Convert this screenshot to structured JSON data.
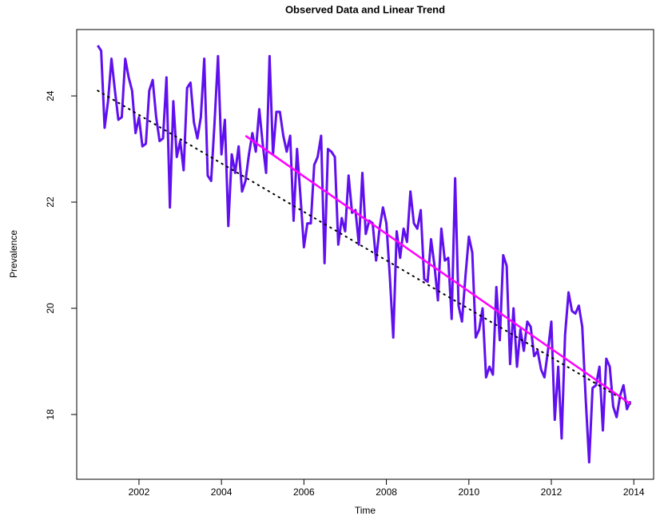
{
  "chart_data": {
    "type": "line",
    "title": "Observed Data and Linear Trend",
    "xlabel": "Time",
    "ylabel": "Prevalence",
    "xlim": [
      2000.49,
      2014.48
    ],
    "ylim": [
      16.78,
      25.25
    ],
    "xticks": [
      2002,
      2004,
      2006,
      2008,
      2010,
      2012,
      2014
    ],
    "yticks": [
      18,
      20,
      22,
      24
    ],
    "series": [
      {
        "color": "#6010ee",
        "style": "solid",
        "x": [
          2001,
          2001.083,
          2001.167,
          2001.25,
          2001.333,
          2001.417,
          2001.5,
          2001.583,
          2001.667,
          2001.75,
          2001.833,
          2001.917,
          2002,
          2002.083,
          2002.167,
          2002.25,
          2002.333,
          2002.417,
          2002.5,
          2002.583,
          2002.667,
          2002.75,
          2002.833,
          2002.917,
          2003,
          2003.083,
          2003.167,
          2003.25,
          2003.333,
          2003.417,
          2003.5,
          2003.583,
          2003.667,
          2003.75,
          2003.833,
          2003.917,
          2004,
          2004.083,
          2004.167,
          2004.25,
          2004.333,
          2004.417,
          2004.5,
          2004.583,
          2004.667,
          2004.75,
          2004.833,
          2004.917,
          2005,
          2005.083,
          2005.167,
          2005.25,
          2005.333,
          2005.417,
          2005.5,
          2005.583,
          2005.667,
          2005.75,
          2005.833,
          2005.917,
          2006,
          2006.083,
          2006.167,
          2006.25,
          2006.333,
          2006.417,
          2006.5,
          2006.583,
          2006.667,
          2006.75,
          2006.833,
          2006.917,
          2007,
          2007.083,
          2007.167,
          2007.25,
          2007.333,
          2007.417,
          2007.5,
          2007.583,
          2007.667,
          2007.75,
          2007.833,
          2007.917,
          2008,
          2008.083,
          2008.167,
          2008.25,
          2008.333,
          2008.417,
          2008.5,
          2008.583,
          2008.667,
          2008.75,
          2008.833,
          2008.917,
          2009,
          2009.083,
          2009.167,
          2009.25,
          2009.333,
          2009.417,
          2009.5,
          2009.583,
          2009.667,
          2009.75,
          2009.833,
          2009.917,
          2010,
          2010.083,
          2010.167,
          2010.25,
          2010.333,
          2010.417,
          2010.5,
          2010.583,
          2010.667,
          2010.75,
          2010.833,
          2010.917,
          2011,
          2011.083,
          2011.167,
          2011.25,
          2011.333,
          2011.417,
          2011.5,
          2011.583,
          2011.667,
          2011.75,
          2011.833,
          2011.917,
          2012,
          2012.083,
          2012.167,
          2012.25,
          2012.333,
          2012.417,
          2012.5,
          2012.583,
          2012.667,
          2012.75,
          2012.833,
          2012.917,
          2013,
          2013.083,
          2013.167,
          2013.25,
          2013.333,
          2013.417,
          2013.5,
          2013.583,
          2013.667,
          2013.75,
          2013.833,
          2013.917
        ],
        "values": [
          24.95,
          24.85,
          23.4,
          23.9,
          24.7,
          24.1,
          23.55,
          23.6,
          24.7,
          24.35,
          24.1,
          23.3,
          23.6,
          23.05,
          23.1,
          24.1,
          24.3,
          23.6,
          23.15,
          23.2,
          24.35,
          21.9,
          23.9,
          22.85,
          23.15,
          22.6,
          24.15,
          24.25,
          23.5,
          23.2,
          23.6,
          24.7,
          22.5,
          22.4,
          23.5,
          24.75,
          22.9,
          23.55,
          21.55,
          22.9,
          22.55,
          23.05,
          22.2,
          22.4,
          22.9,
          23.3,
          22.95,
          23.75,
          23.1,
          22.55,
          24.75,
          22.9,
          23.7,
          23.7,
          23.25,
          22.95,
          23.25,
          21.65,
          23.0,
          22.1,
          21.15,
          21.6,
          21.6,
          22.7,
          22.85,
          23.25,
          20.85,
          23.0,
          22.95,
          22.85,
          21.2,
          21.7,
          21.45,
          22.5,
          21.8,
          21.85,
          21.2,
          22.55,
          21.4,
          21.65,
          21.6,
          20.9,
          21.5,
          21.9,
          21.6,
          20.6,
          19.45,
          21.45,
          20.95,
          21.5,
          21.25,
          22.2,
          21.6,
          21.5,
          21.85,
          20.55,
          20.5,
          21.3,
          20.8,
          20.15,
          21.5,
          20.9,
          20.95,
          19.8,
          22.45,
          20.05,
          19.75,
          20.6,
          21.35,
          21.05,
          19.45,
          19.6,
          20.0,
          18.7,
          18.9,
          18.75,
          20.4,
          19.4,
          21.0,
          20.8,
          18.95,
          20.0,
          18.9,
          19.6,
          19.2,
          19.75,
          19.65,
          19.1,
          19.2,
          18.85,
          18.7,
          19.2,
          19.75,
          17.9,
          18.9,
          17.55,
          19.5,
          20.3,
          19.95,
          19.9,
          20.05,
          19.65,
          18.3,
          17.1,
          18.5,
          18.55,
          18.9,
          17.7,
          19.05,
          18.9,
          18.15,
          17.95,
          18.35,
          18.55,
          18.1,
          18.25
        ]
      },
      {
        "color": "#000000",
        "style": "dotted",
        "x": [
          2001,
          2013.917
        ],
        "values": [
          24.1,
          18.2
        ]
      },
      {
        "color": "#ff00ff",
        "style": "solid",
        "x": [
          2004.583,
          2013.917
        ],
        "values": [
          23.25,
          18.2
        ]
      }
    ]
  }
}
